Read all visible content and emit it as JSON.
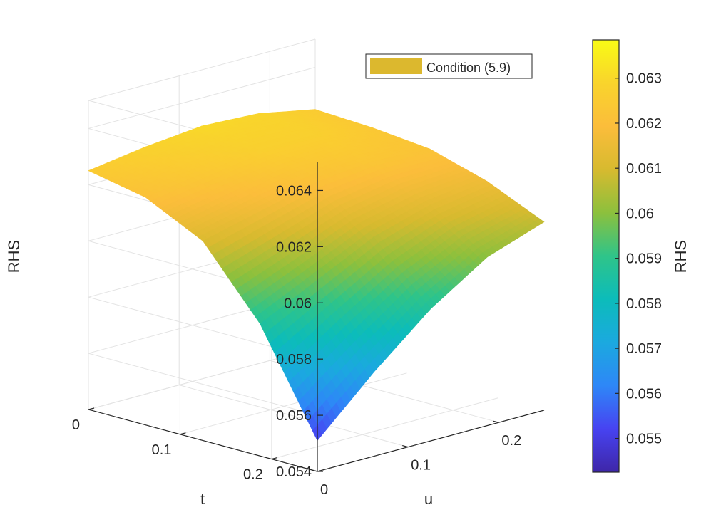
{
  "chart_data": {
    "type": "surface",
    "xlabel": "u",
    "ylabel": "t",
    "zlabel": "RHS",
    "x_ticks": [
      0,
      0.1,
      0.2
    ],
    "x_tick_labels": [
      "0",
      "0.1",
      "0.2"
    ],
    "y_ticks": [
      0,
      0.1,
      0.2
    ],
    "y_tick_labels": [
      "0",
      "0.1",
      "0.2"
    ],
    "z_ticks": [
      0.054,
      0.056,
      0.058,
      0.06,
      0.062,
      0.064
    ],
    "z_tick_labels": [
      "0.054",
      "0.056",
      "0.058",
      "0.06",
      "0.062",
      "0.064"
    ],
    "xlim": [
      0,
      0.25
    ],
    "ylim": [
      0,
      0.25
    ],
    "zlim": [
      0.054,
      0.065
    ],
    "grid": true,
    "legend": {
      "position": "top-right",
      "entries": [
        {
          "label": "Condition (5.9)",
          "color": "#dcb82e"
        }
      ]
    },
    "colorbar": {
      "label": "RHS",
      "range": [
        0.05425,
        0.06385
      ],
      "ticks": [
        0.055,
        0.056,
        0.057,
        0.058,
        0.059,
        0.06,
        0.061,
        0.062,
        0.063
      ],
      "tick_labels": [
        "0.055",
        "0.056",
        "0.057",
        "0.058",
        "0.059",
        "0.06",
        "0.061",
        "0.062",
        "0.063"
      ],
      "colormap": "parula",
      "colormap_stops": [
        "#3e26a8",
        "#4743f1",
        "#2e87f7",
        "#1ba9df",
        "#0cbcba",
        "#2fc489",
        "#8cc03d",
        "#d7ba2f",
        "#fbbd3b",
        "#f9d42c",
        "#f9fb15"
      ]
    },
    "surface": {
      "u": [
        0,
        0.0625,
        0.125,
        0.1875,
        0.25
      ],
      "t": [
        0,
        0.0625,
        0.125,
        0.1875,
        0.25
      ],
      "z": [
        [
          0.0625,
          0.0621,
          0.0611,
          0.0587,
          0.0551
        ],
        [
          0.0628,
          0.0624,
          0.0616,
          0.0597,
          0.057
        ],
        [
          0.063,
          0.0627,
          0.0621,
          0.0607,
          0.0587
        ],
        [
          0.0629,
          0.0627,
          0.0623,
          0.0613,
          0.06
        ],
        [
          0.0625,
          0.0624,
          0.0622,
          0.0616,
          0.0607
        ]
      ]
    }
  }
}
